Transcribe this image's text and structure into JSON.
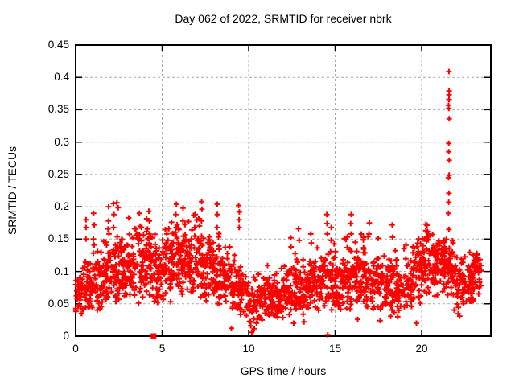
{
  "window": {
    "background": "#ffffff"
  },
  "chart_data": {
    "type": "scatter",
    "title": "Day 062 of 2022, SRMTID for receiver nbrk",
    "xlabel": "GPS time / hours",
    "ylabel": "SRMTID / TECUs",
    "xlim": [
      0,
      24
    ],
    "ylim": [
      0,
      0.45
    ],
    "x_ticks": [
      0,
      5,
      10,
      15,
      20
    ],
    "x_tick_labels": [
      "0",
      "5",
      "10",
      "15",
      "20"
    ],
    "y_ticks": [
      0,
      0.05,
      0.1,
      0.15,
      0.2,
      0.25,
      0.3,
      0.35,
      0.4,
      0.45
    ],
    "y_tick_labels": [
      "0",
      "0.05",
      "0.1",
      "0.15",
      "0.2",
      "0.25",
      "0.3",
      "0.35",
      "0.4",
      "0.45"
    ],
    "grid": true,
    "legend": "none",
    "marker": "plus",
    "marker_color": "#ff0000",
    "grid_color": "#a8a8a8",
    "border_color": "#000000",
    "seed": 42,
    "bins_schema": [
      "x0",
      "x1",
      "n",
      "mean",
      "sd",
      "min",
      "max"
    ],
    "bins": [
      [
        0.0,
        0.5,
        38,
        0.068,
        0.018,
        0.032,
        0.115
      ],
      [
        0.5,
        1.0,
        40,
        0.08,
        0.024,
        0.04,
        0.185
      ],
      [
        1.0,
        1.5,
        40,
        0.085,
        0.028,
        0.04,
        0.19
      ],
      [
        1.5,
        2.0,
        44,
        0.095,
        0.03,
        0.048,
        0.2
      ],
      [
        2.0,
        2.5,
        44,
        0.105,
        0.03,
        0.05,
        0.208
      ],
      [
        2.5,
        3.0,
        44,
        0.1,
        0.025,
        0.05,
        0.165
      ],
      [
        3.0,
        3.5,
        44,
        0.105,
        0.027,
        0.052,
        0.185
      ],
      [
        3.5,
        4.0,
        44,
        0.11,
        0.03,
        0.05,
        0.198
      ],
      [
        4.0,
        4.5,
        44,
        0.115,
        0.03,
        0.058,
        0.195
      ],
      [
        4.5,
        5.0,
        40,
        0.1,
        0.024,
        0.05,
        0.16
      ],
      [
        5.0,
        5.5,
        44,
        0.105,
        0.027,
        0.052,
        0.182
      ],
      [
        5.5,
        6.0,
        44,
        0.11,
        0.03,
        0.05,
        0.205
      ],
      [
        6.0,
        6.5,
        44,
        0.115,
        0.028,
        0.058,
        0.198
      ],
      [
        6.5,
        7.0,
        44,
        0.11,
        0.029,
        0.052,
        0.19
      ],
      [
        7.0,
        7.5,
        44,
        0.115,
        0.03,
        0.058,
        0.208
      ],
      [
        7.5,
        8.0,
        44,
        0.1,
        0.027,
        0.048,
        0.178
      ],
      [
        8.0,
        8.5,
        42,
        0.095,
        0.029,
        0.042,
        0.205
      ],
      [
        8.5,
        9.0,
        40,
        0.085,
        0.025,
        0.04,
        0.158
      ],
      [
        9.0,
        9.5,
        40,
        0.08,
        0.027,
        0.038,
        0.2
      ],
      [
        9.5,
        10.0,
        34,
        0.065,
        0.02,
        0.03,
        0.138
      ],
      [
        10.0,
        10.5,
        28,
        0.05,
        0.019,
        0.008,
        0.118
      ],
      [
        10.5,
        11.0,
        34,
        0.06,
        0.02,
        0.022,
        0.138
      ],
      [
        11.0,
        11.5,
        40,
        0.065,
        0.02,
        0.03,
        0.128
      ],
      [
        11.5,
        12.0,
        40,
        0.06,
        0.019,
        0.028,
        0.12
      ],
      [
        12.0,
        12.5,
        40,
        0.07,
        0.022,
        0.03,
        0.152
      ],
      [
        12.5,
        13.0,
        40,
        0.075,
        0.024,
        0.032,
        0.168
      ],
      [
        13.0,
        13.5,
        40,
        0.07,
        0.022,
        0.03,
        0.14
      ],
      [
        13.5,
        14.0,
        40,
        0.08,
        0.024,
        0.038,
        0.158
      ],
      [
        14.0,
        14.5,
        40,
        0.085,
        0.025,
        0.04,
        0.15
      ],
      [
        14.5,
        15.0,
        40,
        0.09,
        0.029,
        0.04,
        0.188
      ],
      [
        15.0,
        15.5,
        40,
        0.08,
        0.024,
        0.038,
        0.148
      ],
      [
        15.5,
        16.0,
        40,
        0.085,
        0.028,
        0.04,
        0.188
      ],
      [
        16.0,
        16.5,
        40,
        0.09,
        0.025,
        0.048,
        0.158
      ],
      [
        16.5,
        17.0,
        44,
        0.095,
        0.028,
        0.042,
        0.182
      ],
      [
        17.0,
        17.5,
        40,
        0.085,
        0.025,
        0.04,
        0.162
      ],
      [
        17.5,
        18.0,
        40,
        0.075,
        0.022,
        0.038,
        0.138
      ],
      [
        18.0,
        18.5,
        40,
        0.08,
        0.025,
        0.03,
        0.172
      ],
      [
        18.5,
        19.0,
        40,
        0.075,
        0.024,
        0.03,
        0.138
      ],
      [
        19.0,
        19.5,
        40,
        0.085,
        0.024,
        0.042,
        0.148
      ],
      [
        19.5,
        20.0,
        44,
        0.1,
        0.025,
        0.05,
        0.158
      ],
      [
        20.0,
        20.5,
        44,
        0.115,
        0.026,
        0.06,
        0.172
      ],
      [
        20.5,
        21.0,
        44,
        0.11,
        0.024,
        0.06,
        0.162
      ],
      [
        21.0,
        21.5,
        44,
        0.115,
        0.021,
        0.068,
        0.152
      ],
      [
        21.5,
        22.0,
        40,
        0.095,
        0.027,
        0.04,
        0.162
      ],
      [
        22.0,
        22.5,
        40,
        0.08,
        0.024,
        0.03,
        0.128
      ],
      [
        22.5,
        23.0,
        40,
        0.09,
        0.021,
        0.05,
        0.132
      ],
      [
        23.0,
        23.45,
        34,
        0.1,
        0.017,
        0.06,
        0.128
      ]
    ],
    "streaks_schema": [
      "x",
      "values"
    ],
    "streaks": [
      [
        0.62,
        [
          0.15,
          0.168,
          0.18
        ]
      ],
      [
        1.05,
        [
          0.15,
          0.172,
          0.19
        ]
      ],
      [
        1.9,
        [
          0.158,
          0.178,
          0.2
        ]
      ],
      [
        2.2,
        [
          0.168,
          0.188,
          0.205
        ]
      ],
      [
        3.7,
        [
          0.15,
          0.17,
          0.19
        ]
      ],
      [
        4.25,
        [
          0.158,
          0.178,
          0.193
        ]
      ],
      [
        5.8,
        [
          0.168,
          0.188,
          0.204
        ]
      ],
      [
        6.2,
        [
          0.178,
          0.198
        ]
      ],
      [
        6.9,
        [
          0.168,
          0.188
        ]
      ],
      [
        7.3,
        [
          0.178,
          0.196,
          0.208
        ]
      ],
      [
        8.2,
        [
          0.168,
          0.188,
          0.204
        ]
      ],
      [
        9.45,
        [
          0.168,
          0.18,
          0.192,
          0.202
        ]
      ],
      [
        12.45,
        [
          0.138,
          0.152
        ]
      ],
      [
        12.9,
        [
          0.148,
          0.166
        ]
      ],
      [
        13.6,
        [
          0.144,
          0.158
        ]
      ],
      [
        14.55,
        [
          0.158,
          0.174,
          0.188
        ]
      ],
      [
        14.78,
        [
          0.148,
          0.168
        ]
      ],
      [
        15.9,
        [
          0.158,
          0.174,
          0.188
        ]
      ],
      [
        16.95,
        [
          0.158,
          0.175
        ]
      ],
      [
        18.3,
        [
          0.153,
          0.172
        ]
      ],
      [
        20.25,
        [
          0.152,
          0.163,
          0.173
        ]
      ],
      [
        21.3,
        [
          0.138,
          0.148
        ]
      ],
      [
        23.2,
        [
          0.122,
          0.128
        ]
      ]
    ],
    "spike": {
      "x": 21.58,
      "values": [
        0.409,
        0.379,
        0.373,
        0.366,
        0.357,
        0.352,
        0.336,
        0.298,
        0.285,
        0.272,
        0.249,
        0.245,
        0.221,
        0.207,
        0.19,
        0.165,
        0.136
      ]
    },
    "extra_points": [
      [
        10.18,
        0.006
      ],
      [
        10.12,
        0.016
      ],
      [
        10.3,
        0.027
      ],
      [
        10.45,
        0.02
      ],
      [
        14.57,
        0.002
      ],
      [
        9.0,
        0.012
      ],
      [
        12.6,
        0.02
      ],
      [
        13.2,
        0.022
      ],
      [
        16.3,
        0.026
      ],
      [
        17.6,
        0.024
      ],
      [
        19.7,
        0.02
      ],
      [
        22.2,
        0.031
      ],
      [
        18.62,
        0.03
      ]
    ],
    "axis_square_markers": [
      [
        4.5,
        0
      ]
    ]
  }
}
